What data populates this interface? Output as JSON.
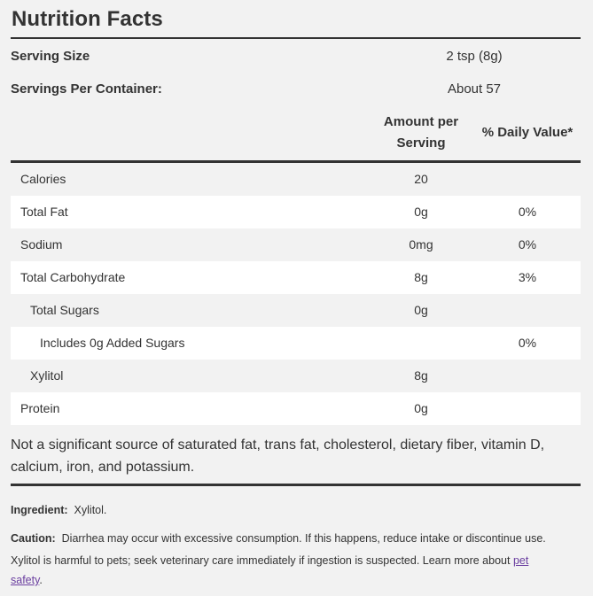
{
  "title": "Nutrition Facts",
  "serving_size": {
    "label": "Serving Size",
    "value": "2 tsp (8g)"
  },
  "servings_per_container": {
    "label": "Servings Per Container:",
    "value": "About 57"
  },
  "headers": {
    "amount_line1": "Amount per",
    "amount_line2": "Serving",
    "daily_value": "% Daily Value*"
  },
  "rows": [
    {
      "name": "Calories",
      "amount": "20",
      "dv": ""
    },
    {
      "name": "Total Fat",
      "amount": "0g",
      "dv": "0%"
    },
    {
      "name": "Sodium",
      "amount": "0mg",
      "dv": "0%"
    },
    {
      "name": "Total Carbohydrate",
      "amount": "8g",
      "dv": "3%"
    },
    {
      "name": "Total Sugars",
      "amount": "0g",
      "dv": ""
    },
    {
      "name": "Includes 0g Added Sugars",
      "amount": "",
      "dv": "0%"
    },
    {
      "name": "Xylitol",
      "amount": "8g",
      "dv": ""
    },
    {
      "name": "Protein",
      "amount": "0g",
      "dv": ""
    }
  ],
  "footnote": "Not a significant source of saturated fat, trans fat, cholesterol, dietary fiber, vitamin D, calcium, iron, and potassium.",
  "ingredient": {
    "label": "Ingredient:",
    "value": "Xylitol."
  },
  "caution": {
    "label": "Caution:",
    "text1": "Diarrhea may occur with excessive consumption. If this happens, reduce intake or discontinue use.",
    "text2": "Xylitol is harmful to pets; seek veterinary care immediately if ingestion is suspected. Learn more about",
    "link_part1": "pet",
    "link_part2": "safety",
    "end": "."
  }
}
